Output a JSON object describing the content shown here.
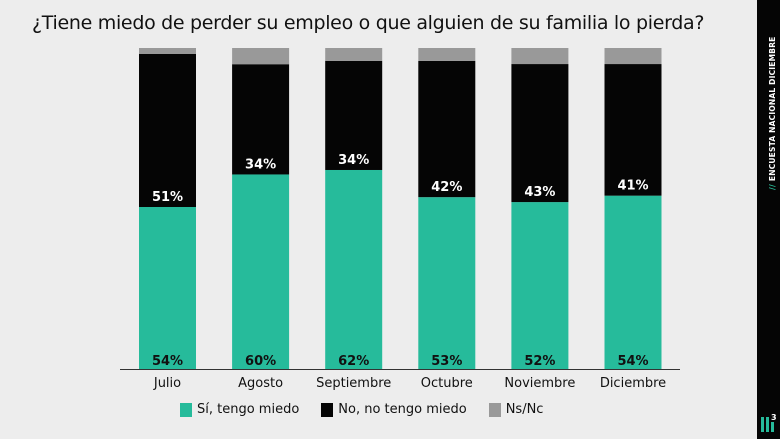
{
  "title": "¿Tiene miedo de perder su empleo o que alguien de su familia lo pierda?",
  "sidebar": {
    "slash": "//",
    "label": "ENCUESTA NACIONAL DICIEMBRE",
    "logo_sup": "3"
  },
  "colors": {
    "si": "#26bb9b",
    "no": "#050505",
    "nsnc": "#999999",
    "background": "#ededed"
  },
  "chart_data": {
    "type": "bar",
    "stacked": true,
    "title": "¿Tiene miedo de perder su empleo o que alguien de su familia lo pierda?",
    "categories": [
      "Julio",
      "Agosto",
      "Septiembre",
      "Octubre",
      "Noviembre",
      "Diciembre"
    ],
    "series": [
      {
        "name": "Sí, tengo miedo",
        "values": [
          54,
          60,
          62,
          53,
          52,
          54
        ],
        "labels": [
          "54%",
          "60%",
          "62%",
          "53%",
          "52%",
          "54%"
        ]
      },
      {
        "name": "No, no tengo miedo",
        "values": [
          51,
          34,
          34,
          42,
          43,
          41
        ],
        "labels": [
          "51%",
          "34%",
          "34%",
          "42%",
          "43%",
          "41%"
        ]
      },
      {
        "name": "Ns/Nc",
        "values": [
          2,
          5,
          4,
          4,
          5,
          5
        ],
        "labels": []
      }
    ],
    "xlabel": "",
    "ylabel": "",
    "grid": false,
    "legend": "bottom"
  },
  "legend": [
    {
      "label": "Sí, tengo miedo",
      "key": "si"
    },
    {
      "label": "No, no tengo miedo",
      "key": "no"
    },
    {
      "label": "Ns/Nc",
      "key": "nsnc"
    }
  ]
}
